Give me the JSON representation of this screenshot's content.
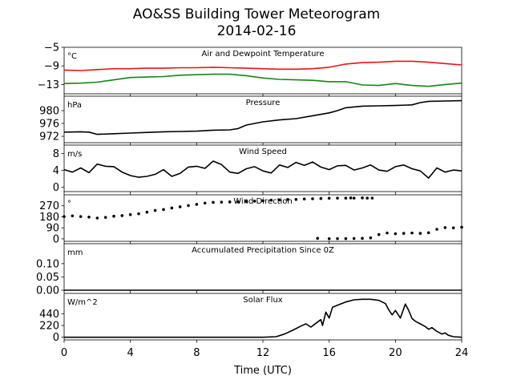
{
  "title": "AO&SS Building Tower Meteorogram",
  "subtitle": "2014-02-16",
  "xlabel": "Time (UTC)",
  "colors": {
    "temperature": "#ee1111",
    "dewpoint": "#118811",
    "default": "#000000"
  },
  "chart_data": [
    {
      "type": "line",
      "title": "Air and Dewpoint Temperature",
      "unit": "°C",
      "x_range": [
        0,
        24
      ],
      "x_ticks": [
        "0",
        "4",
        "8",
        "12",
        "16",
        "20",
        "24"
      ],
      "ylim": [
        -15,
        -5
      ],
      "y_ticks": [
        -5,
        -9,
        -13
      ],
      "y_tick_labels": [
        "−5",
        "−9",
        "−13"
      ],
      "grid": false,
      "series": [
        {
          "color": "#ee1111",
          "x": [
            0,
            1,
            2,
            3,
            4,
            5,
            6,
            7,
            8,
            9,
            10,
            11,
            12,
            13,
            14,
            15,
            16,
            17,
            18,
            19,
            20,
            21,
            22,
            23,
            24
          ],
          "y": [
            -9.9,
            -10.0,
            -9.8,
            -9.6,
            -9.6,
            -9.5,
            -9.5,
            -9.4,
            -9.4,
            -9.3,
            -9.4,
            -9.5,
            -9.6,
            -9.7,
            -9.7,
            -9.6,
            -9.3,
            -8.6,
            -8.3,
            -8.2,
            -8.0,
            -8.0,
            -8.2,
            -8.5,
            -8.8
          ]
        },
        {
          "color": "#118811",
          "x": [
            0,
            1,
            2,
            3,
            4,
            5,
            6,
            7,
            8,
            9,
            10,
            11,
            12,
            13,
            14,
            15,
            16,
            17,
            18,
            19,
            20,
            21,
            22,
            23,
            24
          ],
          "y": [
            -12.8,
            -12.7,
            -12.5,
            -12.0,
            -11.5,
            -11.4,
            -11.3,
            -11.0,
            -10.9,
            -10.8,
            -10.8,
            -11.1,
            -11.6,
            -11.9,
            -12.0,
            -12.1,
            -12.4,
            -12.4,
            -13.1,
            -13.2,
            -12.8,
            -13.2,
            -13.4,
            -13.0,
            -12.7
          ]
        }
      ]
    },
    {
      "type": "line",
      "title": "Pressure",
      "unit": "hPa",
      "x_range": [
        0,
        24
      ],
      "ylim": [
        970,
        984.5
      ],
      "y_ticks": [
        972,
        976,
        980
      ],
      "y_tick_labels": [
        "972",
        "976",
        "980"
      ],
      "grid": false,
      "series": [
        {
          "color": "#000000",
          "x": [
            0,
            1,
            1.5,
            2,
            3,
            4,
            5,
            6,
            7,
            8,
            9,
            10,
            10.5,
            11,
            12,
            13,
            14,
            15,
            16,
            16.5,
            17,
            18,
            19,
            20,
            21,
            21.5,
            22,
            23,
            24
          ],
          "y": [
            973.3,
            973.4,
            973.3,
            972.6,
            972.8,
            973.0,
            973.2,
            973.4,
            973.5,
            973.6,
            973.9,
            974.0,
            974.4,
            975.5,
            976.5,
            977.1,
            977.5,
            978.4,
            979.3,
            980.0,
            980.9,
            981.4,
            981.5,
            981.6,
            981.8,
            982.5,
            982.9,
            983.0,
            983.1
          ]
        }
      ]
    },
    {
      "type": "line",
      "title": "Wind Speed",
      "unit": "m/s",
      "x_range": [
        0,
        24
      ],
      "ylim": [
        -1,
        10
      ],
      "y_ticks": [
        0,
        4,
        8
      ],
      "y_tick_labels": [
        "0",
        "4",
        "8"
      ],
      "grid": false,
      "series": [
        {
          "color": "#000000",
          "x": [
            0,
            0.5,
            1,
            1.5,
            2,
            2.5,
            3,
            3.5,
            4,
            4.5,
            5,
            5.5,
            6,
            6.5,
            7,
            7.5,
            8,
            8.5,
            9,
            9.5,
            10,
            10.5,
            11,
            11.5,
            12,
            12.5,
            13,
            13.5,
            14,
            14.5,
            15,
            15.5,
            16,
            16.5,
            17,
            17.5,
            18,
            18.5,
            19,
            19.5,
            20,
            20.5,
            21,
            21.5,
            22,
            22.5,
            23,
            23.5,
            24
          ],
          "y": [
            4.2,
            3.6,
            4.6,
            3.5,
            5.5,
            5.0,
            4.9,
            3.6,
            2.8,
            2.4,
            2.6,
            3.1,
            4.2,
            2.6,
            3.3,
            4.8,
            5.0,
            4.5,
            6.2,
            5.4,
            3.6,
            3.3,
            4.4,
            4.9,
            3.9,
            3.4,
            5.3,
            4.7,
            5.9,
            5.2,
            6.0,
            4.8,
            4.2,
            5.1,
            5.2,
            4.1,
            4.6,
            5.3,
            4.1,
            3.8,
            4.9,
            5.3,
            4.4,
            3.9,
            2.2,
            4.6,
            3.6,
            4.1,
            3.9
          ]
        }
      ]
    },
    {
      "type": "scatter",
      "title": "Wind Direction",
      "unit": "°",
      "x_range": [
        0,
        24
      ],
      "ylim": [
        -20,
        360
      ],
      "y_ticks": [
        0,
        90,
        180,
        270
      ],
      "y_tick_labels": [
        "0",
        "90",
        "180",
        "270"
      ],
      "grid": false,
      "series": [
        {
          "color": "#000000",
          "x": [
            0,
            0.5,
            1,
            1.5,
            2,
            2.5,
            3,
            3.5,
            4,
            4.5,
            5,
            5.5,
            6,
            6.5,
            7,
            7.5,
            8,
            8.5,
            9,
            9.5,
            10,
            10.5,
            11,
            11.5,
            12,
            12.5,
            13,
            13.5,
            14,
            14.5,
            15,
            15.5,
            16,
            16.5,
            17,
            17.3,
            17.5,
            18,
            18.3,
            18.6,
            15.3,
            16,
            16.5,
            17,
            17.5,
            18,
            18.5,
            19,
            19.5,
            20,
            20.5,
            21,
            21.5,
            22,
            22.5,
            23,
            23.5,
            24
          ],
          "y": [
            182,
            188,
            182,
            178,
            170,
            175,
            185,
            190,
            198,
            205,
            218,
            232,
            240,
            252,
            262,
            272,
            282,
            292,
            298,
            300,
            302,
            302,
            305,
            308,
            312,
            316,
            318,
            322,
            322,
            326,
            328,
            330,
            332,
            333,
            333,
            335,
            333,
            335,
            333,
            333,
            4,
            1,
            2,
            2,
            3,
            4,
            8,
            35,
            48,
            42,
            45,
            48,
            45,
            50,
            78,
            92,
            90,
            95
          ]
        }
      ]
    },
    {
      "type": "line",
      "title": "Accumulated Precipitation Since 0Z",
      "unit": "mm",
      "x_range": [
        0,
        24
      ],
      "ylim": [
        0,
        0.175
      ],
      "y_ticks": [
        0,
        0.05,
        0.1
      ],
      "y_tick_labels": [
        "0.00",
        "0.05",
        "0.10"
      ],
      "grid": false,
      "series": [
        {
          "color": "#000000",
          "x": [
            0,
            24
          ],
          "y": [
            0,
            0
          ]
        }
      ]
    },
    {
      "type": "line",
      "title": "Solar Flux",
      "unit": "W/m^2",
      "x_range": [
        0,
        24
      ],
      "ylim": [
        -50,
        820
      ],
      "y_ticks": [
        0,
        220,
        440
      ],
      "y_tick_labels": [
        "0",
        "220",
        "440"
      ],
      "grid": false,
      "series": [
        {
          "color": "#000000",
          "x": [
            0,
            12,
            12.8,
            13.3,
            13.8,
            14.3,
            14.6,
            14.9,
            15.2,
            15.5,
            15.6,
            15.8,
            16,
            16.2,
            16.5,
            17,
            17.5,
            18,
            18.5,
            19,
            19.4,
            19.6,
            19.8,
            20,
            20.3,
            20.6,
            20.8,
            21,
            21.2,
            21.5,
            21.8,
            22,
            22.2,
            22.5,
            22.8,
            23,
            23.2,
            23.5,
            24
          ],
          "y": [
            0,
            0,
            10,
            60,
            130,
            210,
            250,
            190,
            260,
            330,
            220,
            470,
            360,
            560,
            600,
            660,
            700,
            710,
            710,
            690,
            630,
            510,
            420,
            500,
            360,
            620,
            500,
            350,
            300,
            250,
            200,
            150,
            180,
            110,
            60,
            80,
            35,
            10,
            0
          ]
        }
      ]
    }
  ]
}
